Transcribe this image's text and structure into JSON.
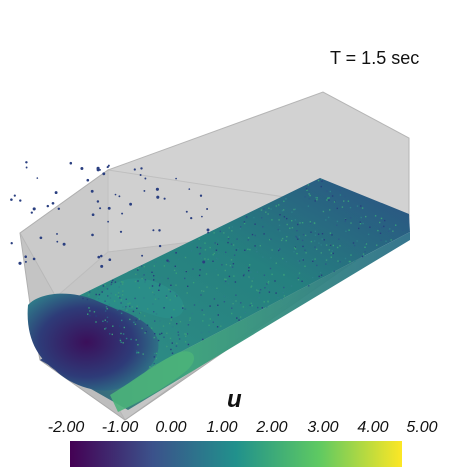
{
  "time_label": "T = 1.5 sec",
  "variable_label": "u",
  "colorbar": {
    "ticks": [
      "-2.00",
      "-1.00",
      "0.00",
      "1.00",
      "2.00",
      "3.00",
      "4.00",
      "5.00"
    ],
    "range": [
      -2.0,
      5.0
    ],
    "colormap": [
      "#440154",
      "#3b528b",
      "#21918c",
      "#5ec962",
      "#fde725"
    ]
  },
  "colors": {
    "tank": "#c9c9c9",
    "tank_edge": "#a8a8a8",
    "fluid_deep": "#2d2a6f",
    "fluid_mid": "#1f7f86",
    "fluid_bright": "#38a976"
  }
}
